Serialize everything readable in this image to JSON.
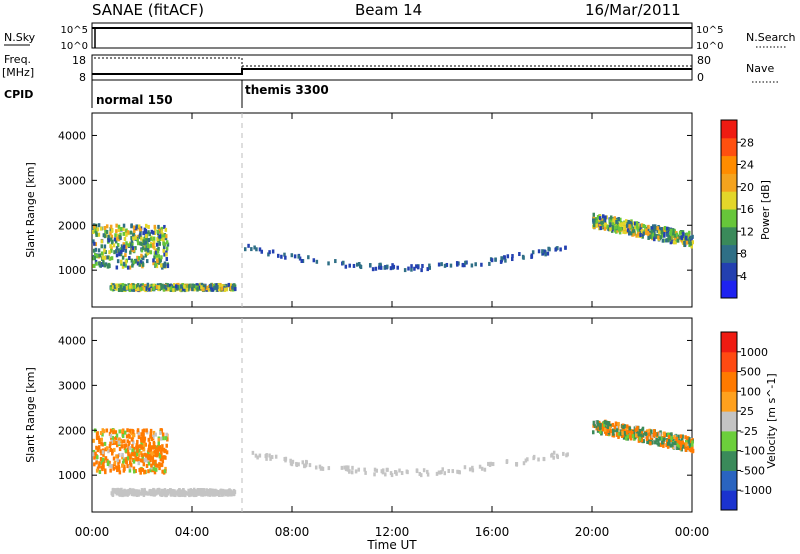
{
  "header": {
    "title": "SANAE (fitACF)",
    "beam": "Beam 14",
    "date": "16/Mar/2011"
  },
  "top_panels": {
    "nsky": {
      "label": "N.Sky",
      "ytick_top": "10^5",
      "ytick_bottom": "10^0",
      "right_top": "10^5",
      "right_bottom": "10^0",
      "right_label": "N.Search"
    },
    "freq": {
      "label_line1": "Freq.",
      "label_line2": "[MHz]",
      "ytick_top": "18",
      "ytick_bottom": "8",
      "right_top": "80",
      "right_bottom": "0",
      "right_label": "Nave"
    },
    "cpid": {
      "label": "CPID",
      "segments": [
        "normal 150",
        "themis 3300"
      ]
    }
  },
  "axes": {
    "xlabel": "Time UT",
    "xticks": [
      "00:00",
      "04:00",
      "08:00",
      "12:00",
      "16:00",
      "20:00",
      "00:00"
    ],
    "ylabel": "Slant Range [km]",
    "yticks": [
      "1000",
      "2000",
      "3000",
      "4000"
    ]
  },
  "colorbars": {
    "power": {
      "label": "Power [dB]",
      "ticks": [
        "4",
        "8",
        "12",
        "16",
        "20",
        "24",
        "28"
      ],
      "colors": [
        "#1e22f0",
        "#2340b0",
        "#2f6f86",
        "#3a8a5a",
        "#67c63a",
        "#e3d62a",
        "#f4a31e",
        "#ff8c00",
        "#ff5010",
        "#ef1b12"
      ]
    },
    "velocity": {
      "label": "Velocity [m s^-1]",
      "ticks": [
        "1000",
        "500",
        "100",
        "25",
        "-25",
        "-100",
        "-500",
        "-1000"
      ],
      "colors": [
        "#1b33cf",
        "#2a64c0",
        "#3a8a5a",
        "#6ccf3b",
        "#c4c4c4",
        "#ffa11e",
        "#ff7a00",
        "#ff4a12",
        "#ef1b12"
      ]
    }
  },
  "chart_data": [
    {
      "type": "line",
      "title": "N.Sky",
      "x": [
        "00:00",
        "24:00"
      ],
      "y_axis": "log",
      "ylim": [
        "10^0",
        "10^5"
      ],
      "series": []
    },
    {
      "type": "line",
      "title": "Freq.",
      "x": [
        "00:00",
        "24:00"
      ],
      "ylim": [
        8,
        18
      ],
      "ylim_right": [
        0,
        80
      ],
      "series": []
    },
    {
      "type": "heatmap",
      "title": "Power",
      "xlabel": "Time UT",
      "ylabel": "Slant Range [km]",
      "xlim": [
        "00:00",
        "24:00"
      ],
      "ylim": [
        180,
        4500
      ],
      "colorbar": "Power [dB]",
      "regions": [
        {
          "t": [
            0.0,
            3.0
          ],
          "range_km": [
            1100,
            2050
          ],
          "power_db": [
            4,
            20
          ]
        },
        {
          "t": [
            0.7,
            5.7
          ],
          "range_km": [
            600,
            720
          ],
          "power_db": [
            4,
            20
          ]
        },
        {
          "t": [
            6.0,
            19.0
          ],
          "range_km": [
            1000,
            1700
          ],
          "power_db": [
            4,
            8
          ]
        },
        {
          "t": [
            20.0,
            24.0
          ],
          "range_km": [
            1500,
            2250
          ],
          "power_db": [
            4,
            20
          ]
        }
      ]
    },
    {
      "type": "heatmap",
      "title": "Velocity",
      "xlabel": "Time UT",
      "ylabel": "Slant Range [km]",
      "xlim": [
        "00:00",
        "24:00"
      ],
      "ylim": [
        180,
        4500
      ],
      "colorbar": "Velocity [m s^-1]",
      "regions": [
        {
          "t": [
            0.0,
            3.0
          ],
          "range_km": [
            1100,
            2050
          ],
          "velocity": [
            -500,
            100
          ]
        },
        {
          "t": [
            0.7,
            5.7
          ],
          "range_km": [
            600,
            720
          ],
          "velocity": [
            -25,
            25
          ]
        },
        {
          "t": [
            6.0,
            19.0
          ],
          "range_km": [
            1000,
            1700
          ],
          "velocity": [
            -25,
            25
          ]
        },
        {
          "t": [
            20.0,
            24.0
          ],
          "range_km": [
            1500,
            2250
          ],
          "velocity": [
            -500,
            500
          ]
        }
      ]
    }
  ]
}
